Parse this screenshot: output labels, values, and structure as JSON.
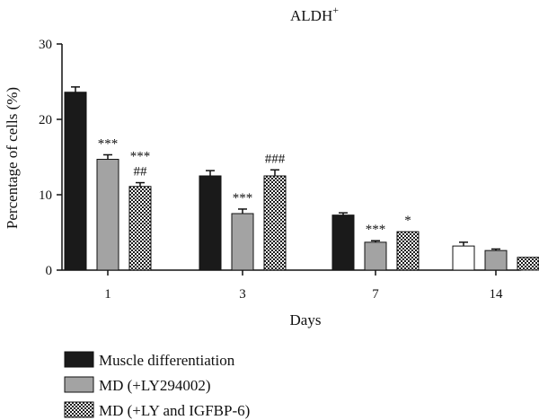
{
  "chart_data": {
    "type": "bar",
    "title": "ALDH",
    "title_superscript": "+",
    "xlabel": "Days",
    "ylabel": "Percentage of cells (%)",
    "ylim": [
      0,
      30
    ],
    "yticks": [
      "0",
      "10",
      "20",
      "30"
    ],
    "categories": [
      "1",
      "3",
      "7",
      "14"
    ],
    "grid": false,
    "legend_position": "bottom-left",
    "series": [
      {
        "name": "Muscle differentiation",
        "fill": "solid-black",
        "values": [
          23.6,
          12.5,
          7.3,
          3.2
        ],
        "errors": [
          0.7,
          0.7,
          0.3,
          0.5
        ]
      },
      {
        "name": "MD (+LY294002)",
        "fill": "solid-gray",
        "values": [
          14.7,
          7.5,
          3.7,
          2.6
        ],
        "errors": [
          0.6,
          0.6,
          0.2,
          0.2
        ]
      },
      {
        "name": "MD (+LY and IGFBP-6)",
        "fill": "checker",
        "values": [
          11.1,
          12.5,
          5.1,
          1.7
        ],
        "errors": [
          0.5,
          0.8,
          0.0,
          0.0
        ]
      }
    ],
    "annotations": [
      {
        "category": "1",
        "series": 1,
        "lines": [
          "***"
        ]
      },
      {
        "category": "1",
        "series": 2,
        "lines": [
          "***",
          "##"
        ]
      },
      {
        "category": "3",
        "series": 1,
        "lines": [
          "***"
        ]
      },
      {
        "category": "3",
        "series": 2,
        "lines": [
          "###"
        ]
      },
      {
        "category": "7",
        "series": 1,
        "lines": [
          "***"
        ]
      },
      {
        "category": "7",
        "series": 2,
        "lines": [
          "*"
        ]
      }
    ],
    "colors": {
      "black_bar": "#1a1a1a",
      "gray_bar": "#a3a3a3",
      "white_bar": "#ffffff",
      "checker_dark": "#1a1a1a",
      "checker_light": "#ffffff",
      "axis": "#111111"
    }
  }
}
